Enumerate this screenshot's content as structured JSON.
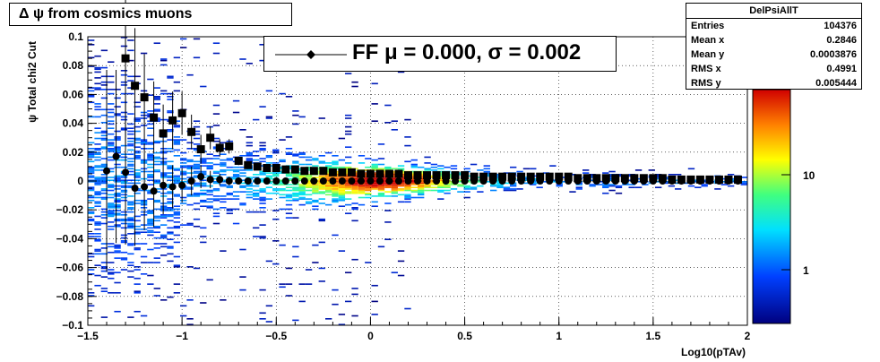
{
  "title": "Δ ψ from cosmics muons",
  "legend": {
    "label": "FF μ =  0.000, σ =   0.002",
    "marker": "filled-circle-with-line"
  },
  "stats": {
    "name": "DelPsiAllT",
    "rows": [
      {
        "label": "Entries",
        "value": "104376"
      },
      {
        "label": "Mean x",
        "value": "0.2846"
      },
      {
        "label": "Mean y",
        "value": "0.0003876"
      },
      {
        "label": "RMS x",
        "value": "0.4991"
      },
      {
        "label": "RMS y",
        "value": "0.005444"
      }
    ]
  },
  "chart_data": {
    "type": "heatmap",
    "title": "Δ ψ from cosmics muons",
    "xlabel": "Log10(pTAv)",
    "ylabel": "ψ  Total chi2 Cut",
    "xlim": [
      -1.5,
      2
    ],
    "ylim": [
      -0.1,
      0.1
    ],
    "x_ticks": [
      "−1.5",
      "−1",
      "−0.5",
      "0",
      "0.5",
      "1",
      "1.5",
      "2"
    ],
    "y_ticks": [
      "−0.1",
      "−0.08",
      "−0.06",
      "−0.04",
      "−0.02",
      "0",
      "0.02",
      "0.04",
      "0.06",
      "0.08",
      "0.1"
    ],
    "z_scale": "log",
    "z_ticks": [
      "1",
      "10"
    ],
    "grid": true,
    "legend_position": "top-center",
    "colors": {
      "high": "#d7191c",
      "mid": "#ffff00",
      "low": "#00008b"
    },
    "series": [
      {
        "marker": "square",
        "x": [
          -1.3,
          -1.25,
          -1.2,
          -1.15,
          -1.1,
          -1.05,
          -1.0,
          -0.95,
          -0.9,
          -0.85,
          -0.8,
          -0.75,
          -0.7,
          -0.65,
          -0.6,
          -0.55,
          -0.5,
          -0.45,
          -0.4,
          -0.35,
          -0.3,
          -0.25,
          -0.2,
          -0.15,
          -0.1,
          -0.05,
          0.0,
          0.05,
          0.1,
          0.15,
          0.2,
          0.25,
          0.3,
          0.35,
          0.4,
          0.45,
          0.5,
          0.55,
          0.6,
          0.65,
          0.7,
          0.75,
          0.8,
          0.85,
          0.9,
          0.95,
          1.0,
          1.05,
          1.1,
          1.15,
          1.2,
          1.25,
          1.3,
          1.35,
          1.4,
          1.45,
          1.5,
          1.55,
          1.6,
          1.65,
          1.7,
          1.75,
          1.8,
          1.85,
          1.9,
          1.95
        ],
        "y": [
          0.085,
          0.066,
          0.058,
          0.044,
          0.033,
          0.042,
          0.047,
          0.034,
          0.022,
          0.03,
          0.023,
          0.024,
          0.014,
          0.011,
          0.01,
          0.009,
          0.009,
          0.008,
          0.008,
          0.007,
          0.007,
          0.007,
          0.006,
          0.006,
          0.006,
          0.005,
          0.005,
          0.005,
          0.005,
          0.005,
          0.004,
          0.004,
          0.004,
          0.004,
          0.004,
          0.004,
          0.004,
          0.003,
          0.003,
          0.003,
          0.003,
          0.003,
          0.003,
          0.003,
          0.003,
          0.003,
          0.003,
          0.003,
          0.002,
          0.002,
          0.002,
          0.002,
          0.002,
          0.002,
          0.002,
          0.002,
          0.002,
          0.002,
          0.001,
          0.001,
          0.001,
          0.001,
          0.001,
          0.001,
          0.001,
          0.001
        ],
        "yerr": [
          0.06,
          0.04,
          0.03,
          0.025,
          0.02,
          0.02,
          0.015,
          0.012,
          0.01,
          0.008,
          0.006,
          0.005,
          0.003,
          0.002,
          0.002,
          0.001,
          0.001,
          0.001,
          0.001,
          0.001,
          0,
          0,
          0,
          0,
          0,
          0,
          0,
          0,
          0,
          0,
          0,
          0,
          0,
          0,
          0,
          0,
          0,
          0,
          0,
          0,
          0,
          0,
          0,
          0,
          0,
          0,
          0,
          0,
          0,
          0,
          0,
          0,
          0,
          0,
          0,
          0,
          0,
          0,
          0,
          0,
          0,
          0,
          0,
          0,
          0,
          0
        ]
      },
      {
        "marker": "circle",
        "x": [
          -1.4,
          -1.35,
          -1.3,
          -1.25,
          -1.2,
          -1.15,
          -1.1,
          -1.05,
          -1.0,
          -0.95,
          -0.9,
          -0.85,
          -0.8,
          -0.75,
          -0.7,
          -0.65,
          -0.6,
          -0.55,
          -0.5,
          -0.45,
          -0.4,
          -0.35,
          -0.3,
          -0.25,
          -0.2,
          -0.15,
          -0.1,
          -0.05,
          0.0,
          0.05,
          0.1,
          0.15,
          0.2,
          0.25,
          0.3,
          0.35,
          0.4,
          0.45,
          0.5,
          0.55,
          0.6,
          0.65,
          0.7,
          0.75,
          0.8,
          0.85,
          0.9,
          0.95,
          1.0,
          1.05,
          1.1,
          1.15,
          1.2,
          1.25,
          1.3,
          1.35,
          1.4,
          1.45,
          1.5,
          1.55,
          1.6,
          1.65,
          1.7,
          1.75,
          1.8,
          1.85,
          1.9,
          1.95
        ],
        "y": [
          0.007,
          0.017,
          0.006,
          -0.005,
          -0.004,
          -0.007,
          -0.003,
          -0.004,
          -0.003,
          0.0,
          0.003,
          0.001,
          0.001,
          0.0,
          0.0,
          0.0,
          0.0,
          0.0,
          0.0,
          0.0,
          0.0,
          0.0,
          0.0,
          0.0,
          0.0,
          0.0,
          0.0,
          0.0,
          0.0,
          0.0,
          0.0,
          0.0,
          0.0,
          0.0,
          0.0,
          0.0,
          0.0,
          0.0,
          0.0,
          0.0,
          0.0,
          0.0,
          0.0,
          0.0,
          0.0,
          0.0,
          0.0,
          0.0,
          0.0,
          0.0,
          0.0,
          0.0,
          0.0,
          0.0,
          0.0,
          0.0,
          0.0,
          0.0,
          0.0,
          0.0,
          0.0,
          0.0,
          0.0,
          0.0,
          0.0,
          0.0,
          0.0,
          0.0
        ],
        "yerr": [
          0.07,
          0.06,
          0.05,
          0.04,
          0.03,
          0.025,
          0.02,
          0.015,
          0.012,
          0.01,
          0.008,
          0.006,
          0.004,
          0.003,
          0.002,
          0.001,
          0.001,
          0.001,
          0,
          0,
          0,
          0,
          0,
          0,
          0,
          0,
          0,
          0,
          0,
          0,
          0,
          0,
          0,
          0,
          0,
          0,
          0,
          0,
          0,
          0,
          0,
          0,
          0,
          0,
          0,
          0,
          0,
          0,
          0,
          0,
          0,
          0,
          0,
          0,
          0,
          0,
          0,
          0,
          0,
          0,
          0,
          0,
          0,
          0,
          0,
          0,
          0,
          0
        ]
      }
    ]
  }
}
